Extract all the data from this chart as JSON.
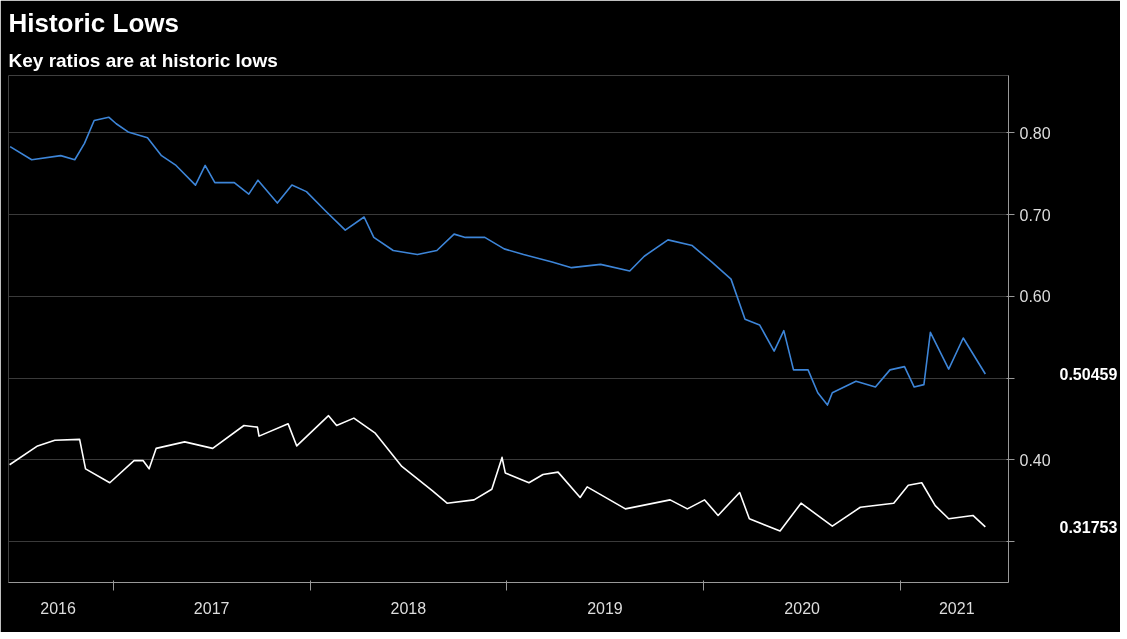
{
  "chart_data": {
    "type": "line",
    "title": "Historic Lows",
    "subtitle": "Key ratios are at historic lows",
    "series": [
      {
        "color": "#ffffff",
        "x": [
          "2016-06-22",
          "2016-08-13",
          "2016-09-14",
          "2016-10-30",
          "2016-11-10",
          "2016-12-25",
          "2017-02-08",
          "2017-02-25",
          "2017-03-08",
          "2017-03-21",
          "2017-05-13",
          "2017-07-04",
          "2017-08-31",
          "2017-09-25",
          "2017-09-28",
          "2017-11-21",
          "2017-12-07",
          "2018-02-04",
          "2018-02-19",
          "2018-03-23",
          "2018-05-01",
          "2018-06-20",
          "2018-08-16",
          "2018-09-12",
          "2018-11-01",
          "2018-12-04",
          "2018-12-23",
          "2018-12-29",
          "2019-02-11",
          "2019-03-09",
          "2019-04-06",
          "2019-05-17",
          "2019-05-30",
          "2019-08-09",
          "2019-10-31",
          "2019-12-02",
          "2020-01-03",
          "2020-01-28",
          "2020-03-08",
          "2020-03-26",
          "2020-05-22",
          "2020-06-30",
          "2020-08-27",
          "2020-10-18",
          "2020-12-19",
          "2021-01-15",
          "2021-02-09",
          "2021-03-06",
          "2021-03-31",
          "2021-05-15",
          "2021-06-07"
        ],
        "values": [
          0.394,
          0.417,
          0.424,
          0.425,
          0.389,
          0.372,
          0.399,
          0.399,
          0.389,
          0.414,
          0.422,
          0.414,
          0.442,
          0.44,
          0.429,
          0.444,
          0.417,
          0.454,
          0.442,
          0.451,
          0.433,
          0.392,
          0.362,
          0.347,
          0.351,
          0.364,
          0.403,
          0.384,
          0.372,
          0.382,
          0.385,
          0.354,
          0.367,
          0.34,
          0.351,
          0.34,
          0.351,
          0.332,
          0.36,
          0.328,
          0.313,
          0.347,
          0.319,
          0.342,
          0.347,
          0.369,
          0.372,
          0.344,
          0.328,
          0.332,
          0.318
        ]
      },
      {
        "color": "#3d85d8",
        "x": [
          "2016-06-23",
          "2016-08-02",
          "2016-09-25",
          "2016-10-21",
          "2016-11-08",
          "2016-11-26",
          "2016-12-23",
          "2017-01-06",
          "2017-01-28",
          "2017-03-05",
          "2017-03-31",
          "2017-04-27",
          "2017-06-02",
          "2017-06-20",
          "2017-07-08",
          "2017-08-13",
          "2017-09-09",
          "2017-09-26",
          "2017-11-01",
          "2017-11-28",
          "2017-12-25",
          "2018-01-30",
          "2018-03-07",
          "2018-04-11",
          "2018-04-29",
          "2018-06-04",
          "2018-07-19",
          "2018-08-24",
          "2018-09-25",
          "2018-10-16",
          "2018-11-21",
          "2018-12-27",
          "2019-02-01",
          "2019-03-26",
          "2019-05-01",
          "2019-06-24",
          "2019-08-17",
          "2019-09-13",
          "2019-10-27",
          "2019-12-11",
          "2020-01-16",
          "2020-02-21",
          "2020-03-18",
          "2020-04-14",
          "2020-05-11",
          "2020-05-29",
          "2020-06-16",
          "2020-07-13",
          "2020-07-31",
          "2020-08-18",
          "2020-08-27",
          "2020-10-10",
          "2020-11-15",
          "2020-12-12",
          "2021-01-08",
          "2021-01-26",
          "2021-02-13",
          "2021-02-25",
          "2021-03-31",
          "2021-04-27",
          "2021-06-07"
        ],
        "values": [
          0.783,
          0.767,
          0.772,
          0.767,
          0.787,
          0.815,
          0.819,
          0.811,
          0.801,
          0.794,
          0.772,
          0.76,
          0.736,
          0.76,
          0.739,
          0.739,
          0.725,
          0.742,
          0.714,
          0.736,
          0.728,
          0.704,
          0.681,
          0.697,
          0.672,
          0.656,
          0.651,
          0.656,
          0.676,
          0.672,
          0.672,
          0.658,
          0.651,
          0.642,
          0.635,
          0.639,
          0.631,
          0.649,
          0.669,
          0.662,
          0.642,
          0.621,
          0.572,
          0.565,
          0.533,
          0.558,
          0.51,
          0.51,
          0.482,
          0.467,
          0.482,
          0.496,
          0.489,
          0.51,
          0.514,
          0.489,
          0.492,
          0.556,
          0.511,
          0.549,
          0.505
        ]
      }
    ],
    "xlim": [
      "2016-06-20",
      "2021-07-20"
    ],
    "xticks": [
      {
        "value": "2017-01-01",
        "label": null
      },
      {
        "value": "2018-01-01",
        "label": null
      },
      {
        "value": "2019-01-01",
        "label": null
      },
      {
        "value": "2020-01-01",
        "label": null
      },
      {
        "value": "2021-01-01",
        "label": null
      },
      {
        "value": "2016-09-20",
        "label": "2016"
      },
      {
        "value": "2017-07-02",
        "label": "2017"
      },
      {
        "value": "2018-07-02",
        "label": "2018"
      },
      {
        "value": "2019-07-02",
        "label": "2019"
      },
      {
        "value": "2020-07-02",
        "label": "2020"
      },
      {
        "value": "2021-04-15",
        "label": "2021"
      }
    ],
    "ylim": [
      0.25,
      0.87
    ],
    "yticks": [
      {
        "value": 0.3,
        "label": null
      },
      {
        "value": 0.4,
        "label": "0.40"
      },
      {
        "value": 0.5,
        "label": null
      },
      {
        "value": 0.6,
        "label": "0.60"
      },
      {
        "value": 0.7,
        "label": "0.70"
      },
      {
        "value": 0.8,
        "label": "0.80"
      }
    ],
    "annotations": [
      "0.50459",
      "0.31753"
    ],
    "grid": true
  }
}
